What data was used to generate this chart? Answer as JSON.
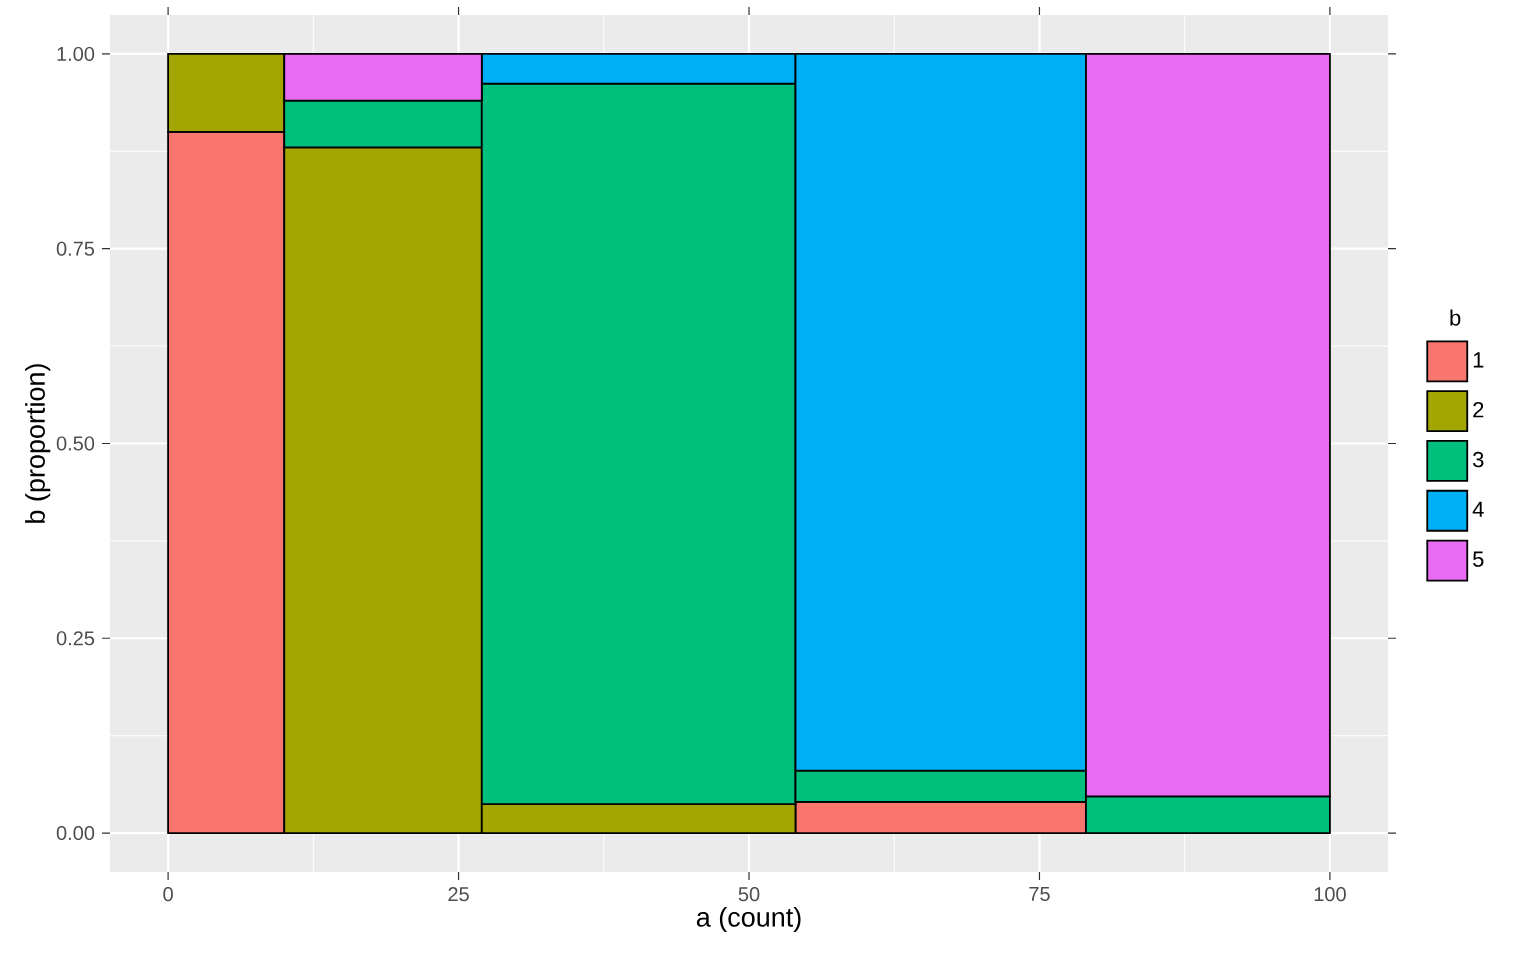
{
  "chart_data": {
    "type": "bar",
    "stacked": true,
    "xlabel": "a (count)",
    "ylabel": "b (proportion)",
    "legend_title": "b",
    "legend": "right",
    "grid": true,
    "x": [
      5,
      18.5,
      40.5,
      66.5,
      89.5
    ],
    "xlim": [
      -5,
      105
    ],
    "xticks": [
      0,
      25,
      50,
      75,
      100
    ],
    "ylim": [
      -0.05,
      1.05
    ],
    "yticks": [
      {
        "value": 0,
        "label": "0.00"
      },
      {
        "value": 0.25,
        "label": "0.25"
      },
      {
        "value": 0.5,
        "label": "0.50"
      },
      {
        "value": 0.75,
        "label": "0.75"
      },
      {
        "value": 1,
        "label": "1.00"
      }
    ],
    "series": [
      {
        "name": "1",
        "color": "#f8766d",
        "values": [
          0.9,
          null,
          null,
          0.04,
          null
        ]
      },
      {
        "name": "2",
        "color": "#a3a500",
        "values": [
          0.1,
          0.88,
          0.037,
          null,
          null
        ]
      },
      {
        "name": "3",
        "color": "#00bf7d",
        "values": [
          null,
          0.06,
          0.925,
          0.04,
          0.047
        ]
      },
      {
        "name": "4",
        "color": "#00b0f6",
        "values": [
          null,
          null,
          0.038,
          0.92,
          null
        ]
      },
      {
        "name": "5",
        "color": "#e76bf3",
        "values": [
          null,
          0.06,
          null,
          null,
          0.953
        ]
      }
    ]
  }
}
